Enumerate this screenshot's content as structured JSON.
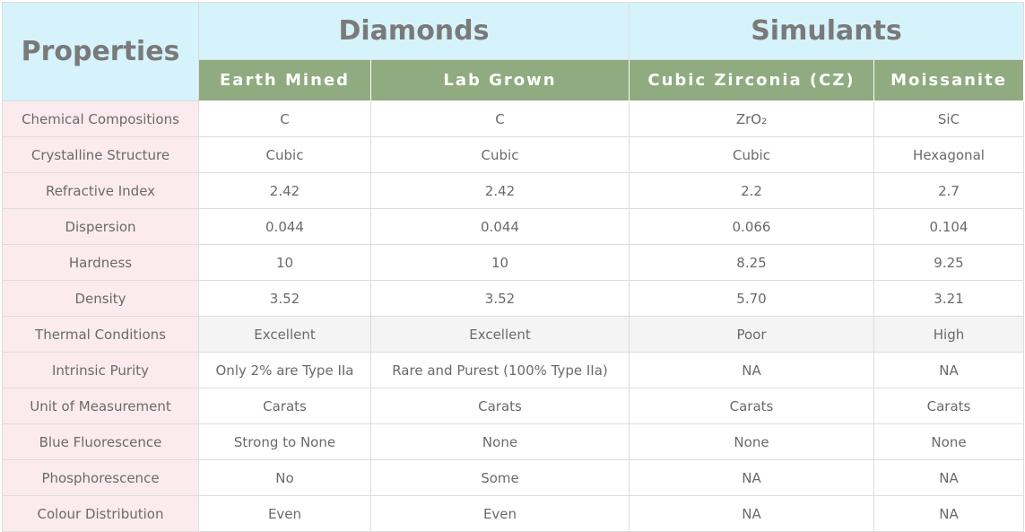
{
  "header": {
    "properties": "Properties",
    "groups": [
      "Diamonds",
      "Simulants"
    ],
    "columns": [
      "Earth Mined",
      "Lab Grown",
      "Cubic Zirconia (CZ)",
      "Moissanite"
    ]
  },
  "table": {
    "rows": [
      [
        "Chemical Compositions",
        "C",
        "C",
        "ZrO₂",
        "SiC"
      ],
      [
        "Crystalline Structure",
        "Cubic",
        "Cubic",
        "Cubic",
        "Hexagonal"
      ],
      [
        "Refractive Index",
        "2.42",
        "2.42",
        "2.2",
        "2.7"
      ],
      [
        "Dispersion",
        "0.044",
        "0.044",
        "0.066",
        "0.104"
      ],
      [
        "Hardness",
        "10",
        "10",
        "8.25",
        "9.25"
      ],
      [
        "Density",
        "3.52",
        "3.52",
        "5.70",
        "3.21"
      ],
      [
        "Thermal Conditions",
        "Excellent",
        "Excellent",
        "Poor",
        "High"
      ],
      [
        "Intrinsic Purity",
        "Only 2% are Type IIa",
        "Rare and Purest (100% Type IIa)",
        "NA",
        "NA"
      ],
      [
        "Unit of Measurement",
        "Carats",
        "Carats",
        "Carats",
        "Carats"
      ],
      [
        "Blue Fluorescence",
        "Strong to None",
        "None",
        "None",
        "None"
      ],
      [
        "Phosphorescence",
        "No",
        "Some",
        "NA",
        "NA"
      ],
      [
        "Colour Distribution",
        "Even",
        "Even",
        "NA",
        "NA"
      ]
    ]
  }
}
